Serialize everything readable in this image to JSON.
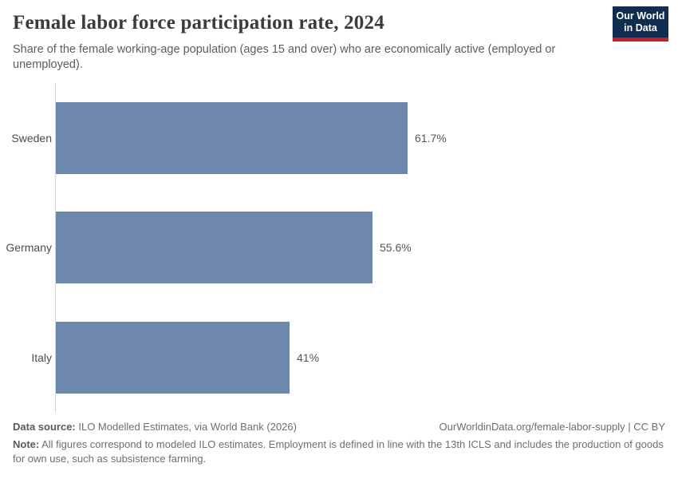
{
  "header": {
    "title": "Female labor force participation rate, 2024",
    "subtitle": "Share of the female working-age population (ages 15 and over) who are economically active (employed or unemployed).",
    "logo": {
      "line1": "Our World",
      "line2": "in Data"
    }
  },
  "chart_data": {
    "type": "bar",
    "orientation": "horizontal",
    "title": "Female labor force participation rate, 2024",
    "categories": [
      "Sweden",
      "Germany",
      "Italy"
    ],
    "values": [
      61.7,
      55.6,
      41
    ],
    "value_labels": [
      "61.7%",
      "55.6%",
      "41%"
    ],
    "unit": "%",
    "xlim": [
      0,
      61.7
    ],
    "grid": false,
    "legend": "none",
    "bar_color": "#6d87ad"
  },
  "footer": {
    "data_source_label": "Data source:",
    "data_source": " ILO Modelled Estimates, via World Bank (2026)",
    "citation": "OurWorldinData.org/female-labor-supply | CC BY",
    "note_label": "Note:",
    "note": " All figures correspond to modeled ILO estimates. Employment is defined in line with the 13th ICLS and includes the production of goods for own use, such as subsistence farming."
  },
  "colors": {
    "bar": "#6d87ad",
    "logo_background": "#102d4f",
    "logo_accent": "#c0232c",
    "axis_line": "#d6d6d6"
  }
}
